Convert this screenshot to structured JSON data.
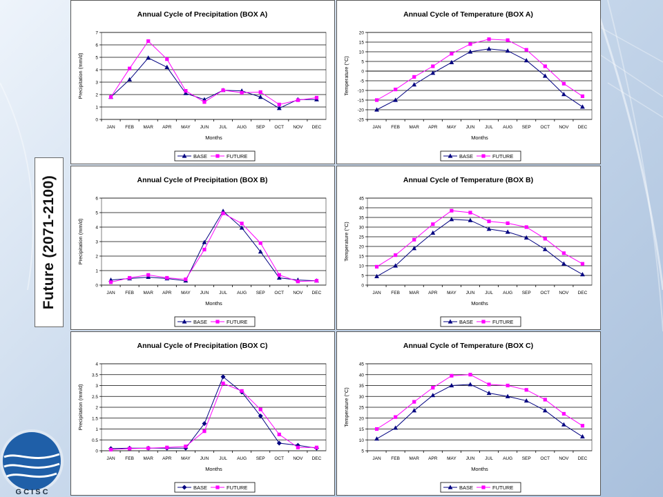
{
  "side_label": "Future (2071-2100)",
  "logo_text": "G C I S C",
  "colors": {
    "base": "#000080",
    "future": "#ff00ff"
  },
  "chart_data": [
    {
      "type": "line",
      "title": "Annual Cycle of Precipitation (BOX A)",
      "xlabel": "Months",
      "ylabel": "Precipitation (mm/d)",
      "ylim": [
        0,
        7
      ],
      "ystep": 1,
      "grid": true,
      "legend": "bottom",
      "categories": [
        "JAN",
        "FEB",
        "MAR",
        "APR",
        "MAY",
        "JUN",
        "JUL",
        "AUG",
        "SEP",
        "OCT",
        "NOV",
        "DEC"
      ],
      "series": [
        {
          "name": "BASE",
          "marker": "triangle",
          "values": [
            1.8,
            3.2,
            4.95,
            4.2,
            2.1,
            1.6,
            2.35,
            2.3,
            1.8,
            0.9,
            1.6,
            1.6
          ]
        },
        {
          "name": "FUTURE",
          "marker": "square",
          "values": [
            1.8,
            4.1,
            6.3,
            4.85,
            2.3,
            1.4,
            2.35,
            2.15,
            2.2,
            1.2,
            1.55,
            1.75
          ]
        }
      ]
    },
    {
      "type": "line",
      "title": "Annual Cycle of Temperature (BOX A)",
      "xlabel": "Months",
      "ylabel": "Temperature (°C)",
      "ylim": [
        -25,
        20
      ],
      "ystep": 5,
      "grid": true,
      "legend": "bottom",
      "categories": [
        "JAN",
        "FEB",
        "MAR",
        "APR",
        "MAY",
        "JUN",
        "JUL",
        "AUG",
        "SEP",
        "OCT",
        "NOV",
        "DEC"
      ],
      "series": [
        {
          "name": "BASE",
          "marker": "triangle",
          "values": [
            -20,
            -15,
            -7,
            -1,
            4.5,
            10,
            11.5,
            10.5,
            5.5,
            -2.5,
            -12,
            -18.5
          ]
        },
        {
          "name": "FUTURE",
          "marker": "square",
          "values": [
            -15,
            -9.5,
            -3,
            2.5,
            9,
            14,
            16.5,
            16,
            11,
            2.5,
            -6.5,
            -13
          ]
        }
      ]
    },
    {
      "type": "line",
      "title": "Annual Cycle of Precipitation (BOX B)",
      "xlabel": "Months",
      "ylabel": "Precipitation (mm/d)",
      "ylim": [
        0,
        6
      ],
      "ystep": 1,
      "grid": true,
      "legend": "bottom",
      "categories": [
        "JAN",
        "FEB",
        "MAR",
        "APR",
        "MAY",
        "JUN",
        "JUL",
        "AUG",
        "SEP",
        "OCT",
        "NOV",
        "DEC"
      ],
      "series": [
        {
          "name": "BASE",
          "marker": "triangle",
          "values": [
            0.35,
            0.45,
            0.55,
            0.45,
            0.3,
            2.95,
            5.1,
            3.95,
            2.3,
            0.5,
            0.35,
            0.3
          ]
        },
        {
          "name": "FUTURE",
          "marker": "square",
          "values": [
            0.2,
            0.5,
            0.7,
            0.5,
            0.4,
            2.45,
            4.95,
            4.25,
            2.9,
            0.7,
            0.25,
            0.3
          ]
        }
      ]
    },
    {
      "type": "line",
      "title": "Annual Cycle of Temperature (BOX B)",
      "xlabel": "Months",
      "ylabel": "Temperature (°C)",
      "ylim": [
        0,
        45
      ],
      "ystep": 5,
      "grid": true,
      "legend": "bottom",
      "categories": [
        "JAN",
        "FEB",
        "MAR",
        "APR",
        "MAY",
        "JUN",
        "JUL",
        "AUG",
        "SEP",
        "OCT",
        "NOV",
        "DEC"
      ],
      "series": [
        {
          "name": "BASE",
          "marker": "triangle",
          "values": [
            4.5,
            10,
            19,
            27,
            34,
            33.5,
            29,
            27.5,
            24.5,
            18.5,
            11,
            5.5
          ]
        },
        {
          "name": "FUTURE",
          "marker": "square",
          "values": [
            9.5,
            15.5,
            23.5,
            31.5,
            38.5,
            37.5,
            33,
            32,
            30,
            24,
            16.5,
            11
          ]
        }
      ]
    },
    {
      "type": "line",
      "title": "Annual Cycle of Precipitation (BOX C)",
      "xlabel": "Months",
      "ylabel": "Precipitation (mm/d)",
      "ylim": [
        0,
        4
      ],
      "ystep": 0.5,
      "grid": true,
      "legend": "bottom",
      "categories": [
        "JAN",
        "FEB",
        "MAR",
        "APR",
        "MAY",
        "JUN",
        "JUL",
        "AUG",
        "SEP",
        "OCT",
        "NOV",
        "DEC"
      ],
      "series": [
        {
          "name": "BASE",
          "marker": "diamond",
          "values": [
            0.1,
            0.12,
            0.12,
            0.12,
            0.12,
            1.25,
            3.4,
            2.7,
            1.6,
            0.35,
            0.25,
            0.12
          ]
        },
        {
          "name": "FUTURE",
          "marker": "square",
          "values": [
            0.05,
            0.1,
            0.12,
            0.15,
            0.2,
            0.9,
            3.1,
            2.75,
            1.9,
            0.75,
            0.15,
            0.15
          ]
        }
      ]
    },
    {
      "type": "line",
      "title": "Annual Cycle of Temperature (BOX C)",
      "xlabel": "Months",
      "ylabel": "Temperature (°C)",
      "ylim": [
        5,
        45
      ],
      "ystep": 5,
      "grid": true,
      "legend": "bottom",
      "categories": [
        "JAN",
        "FEB",
        "MAR",
        "APR",
        "MAY",
        "JUN",
        "JUL",
        "AUG",
        "SEP",
        "OCT",
        "NOV",
        "DEC"
      ],
      "series": [
        {
          "name": "BASE",
          "marker": "triangle",
          "values": [
            10.5,
            15.5,
            23.5,
            30.5,
            35,
            35.5,
            31.5,
            30,
            28,
            23.5,
            17,
            11.5
          ]
        },
        {
          "name": "FUTURE",
          "marker": "square",
          "values": [
            15,
            20.5,
            27.5,
            34,
            39.5,
            40,
            35.5,
            35,
            33,
            28.5,
            22,
            16.5
          ]
        }
      ]
    }
  ]
}
